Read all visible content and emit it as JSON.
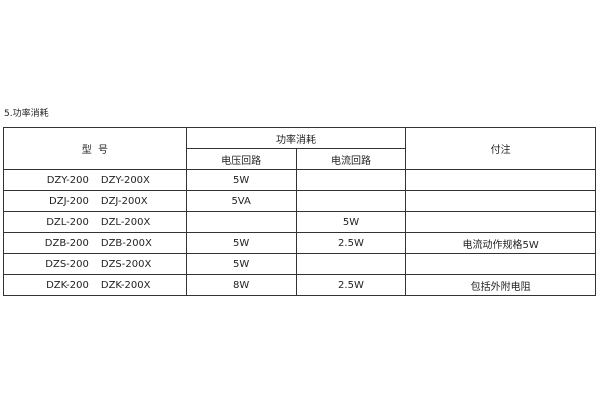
{
  "title": "5.功率消耗",
  "header": {
    "model": "型  号",
    "power": "功率消耗",
    "voltage": "电压回路",
    "current": "电流回路",
    "note": "付注"
  },
  "rows": [
    {
      "m1": "DZY-200",
      "m2": "DZY-200X",
      "v": "5W",
      "c": "",
      "n": ""
    },
    {
      "m1": "DZJ-200",
      "m2": "DZJ-200X",
      "v": "5VA",
      "c": "",
      "n": ""
    },
    {
      "m1": "DZL-200",
      "m2": "DZL-200X",
      "v": "",
      "c": "5W",
      "n": ""
    },
    {
      "m1": "DZB-200",
      "m2": "DZB-200X",
      "v": "5W",
      "c": "2.5W",
      "n": "电流动作规格5W"
    },
    {
      "m1": "DZS-200",
      "m2": "DZS-200X",
      "v": "5W",
      "c": "",
      "n": ""
    },
    {
      "m1": "DZK-200",
      "m2": "DZK-200X",
      "v": "8W",
      "c": "2.5W",
      "n": "包括外附电阻"
    }
  ]
}
